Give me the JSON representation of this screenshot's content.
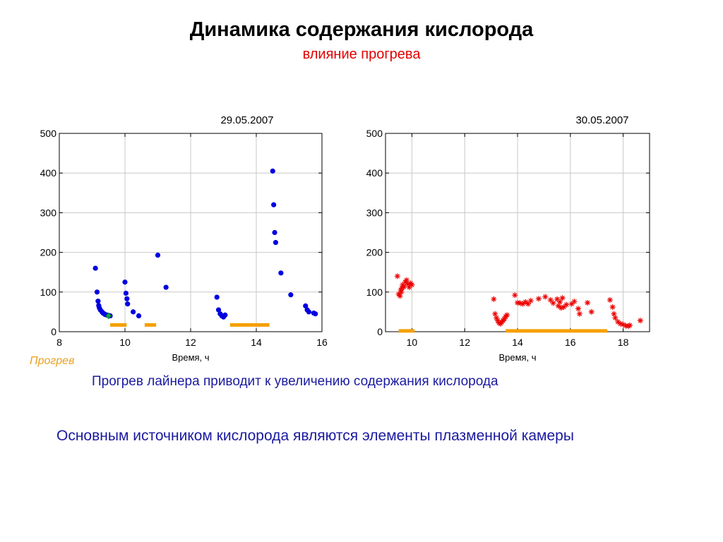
{
  "slide": {
    "title": "Динамика содержания кислорода",
    "subtitle": "влияние прогрева",
    "heat_label": "Прогрев",
    "conclusion1": "Прогрев лайнера приводит  к увеличению содержания кислорода",
    "conclusion2": "Основным источником кислорода являются элементы плазменной камеры"
  },
  "colors": {
    "series_day1": "#0000e0",
    "series_day2": "#ee0000",
    "heating": "#f5a000",
    "grid": "#c8c8c8",
    "green_marker": "#00aa44"
  },
  "chart_data": [
    {
      "type": "scatter",
      "date_label": "29.05.2007",
      "xlabel": "Время, ч",
      "ylabel": "",
      "xlim": [
        8,
        16
      ],
      "ylim": [
        0,
        500
      ],
      "xticks": [
        8,
        10,
        12,
        14,
        16
      ],
      "yticks": [
        0,
        100,
        200,
        300,
        400,
        500
      ],
      "grid": true,
      "marker": "circle",
      "series": [
        {
          "points": [
            [
              9.1,
              160
            ],
            [
              9.15,
              100
            ],
            [
              9.18,
              77
            ],
            [
              9.2,
              66
            ],
            [
              9.22,
              60
            ],
            [
              9.25,
              55
            ],
            [
              9.3,
              50
            ],
            [
              9.33,
              47
            ],
            [
              9.37,
              45
            ],
            [
              9.4,
              43
            ],
            [
              9.45,
              42
            ],
            [
              9.5,
              41
            ],
            [
              9.55,
              40
            ],
            [
              10.0,
              125
            ],
            [
              10.03,
              97
            ],
            [
              10.06,
              83
            ],
            [
              10.08,
              70
            ],
            [
              10.25,
              50
            ],
            [
              10.42,
              40
            ],
            [
              11.0,
              193
            ],
            [
              11.25,
              112
            ],
            [
              12.8,
              87
            ],
            [
              12.85,
              55
            ],
            [
              12.9,
              45
            ],
            [
              12.95,
              40
            ],
            [
              13.0,
              37
            ],
            [
              13.05,
              42
            ],
            [
              14.5,
              405
            ],
            [
              14.53,
              320
            ],
            [
              14.56,
              250
            ],
            [
              14.59,
              225
            ],
            [
              14.75,
              148
            ],
            [
              15.05,
              93
            ],
            [
              15.5,
              65
            ],
            [
              15.55,
              55
            ],
            [
              15.6,
              50
            ],
            [
              15.75,
              47
            ],
            [
              15.8,
              45
            ]
          ]
        }
      ],
      "heating_intervals": [
        [
          9.55,
          10.05
        ],
        [
          10.6,
          10.95
        ],
        [
          13.2,
          14.4
        ]
      ],
      "heating_level": 17
    },
    {
      "type": "scatter",
      "date_label": "30.05.2007",
      "xlabel": "Время, ч",
      "ylabel": "",
      "xlim": [
        9,
        19
      ],
      "ylim": [
        0,
        500
      ],
      "xticks": [
        10,
        12,
        14,
        16,
        18
      ],
      "yticks": [
        0,
        100,
        200,
        300,
        400,
        500
      ],
      "grid": true,
      "marker": "star",
      "series": [
        {
          "points": [
            [
              9.45,
              140
            ],
            [
              9.5,
              95
            ],
            [
              9.55,
              90
            ],
            [
              9.6,
              100
            ],
            [
              9.62,
              110
            ],
            [
              9.65,
              118
            ],
            [
              9.7,
              113
            ],
            [
              9.75,
              125
            ],
            [
              9.8,
              130
            ],
            [
              9.85,
              120
            ],
            [
              9.9,
              112
            ],
            [
              9.95,
              122
            ],
            [
              10.0,
              118
            ],
            [
              9.58,
              105
            ],
            [
              13.1,
              82
            ],
            [
              13.15,
              45
            ],
            [
              13.2,
              35
            ],
            [
              13.25,
              28
            ],
            [
              13.3,
              22
            ],
            [
              13.35,
              20
            ],
            [
              13.4,
              24
            ],
            [
              13.45,
              28
            ],
            [
              13.5,
              32
            ],
            [
              13.55,
              38
            ],
            [
              13.6,
              42
            ],
            [
              13.9,
              92
            ],
            [
              14.0,
              73
            ],
            [
              14.1,
              72
            ],
            [
              14.2,
              70
            ],
            [
              14.3,
              75
            ],
            [
              14.4,
              70
            ],
            [
              14.5,
              78
            ],
            [
              14.8,
              83
            ],
            [
              15.05,
              88
            ],
            [
              15.25,
              80
            ],
            [
              15.35,
              72
            ],
            [
              15.5,
              82
            ],
            [
              15.55,
              65
            ],
            [
              15.6,
              75
            ],
            [
              15.65,
              60
            ],
            [
              15.7,
              85
            ],
            [
              15.75,
              62
            ],
            [
              15.85,
              68
            ],
            [
              16.05,
              70
            ],
            [
              16.15,
              76
            ],
            [
              16.3,
              58
            ],
            [
              16.35,
              45
            ],
            [
              16.65,
              73
            ],
            [
              16.8,
              50
            ],
            [
              17.5,
              80
            ],
            [
              17.6,
              62
            ],
            [
              17.65,
              45
            ],
            [
              17.7,
              35
            ],
            [
              17.8,
              25
            ],
            [
              17.9,
              20
            ],
            [
              18.0,
              18
            ],
            [
              18.1,
              15
            ],
            [
              18.2,
              14
            ],
            [
              18.25,
              16
            ],
            [
              18.65,
              28
            ]
          ]
        }
      ],
      "heating_intervals": [
        [
          9.5,
          10.1
        ],
        [
          13.55,
          17.4
        ]
      ],
      "heating_level": 2
    }
  ]
}
